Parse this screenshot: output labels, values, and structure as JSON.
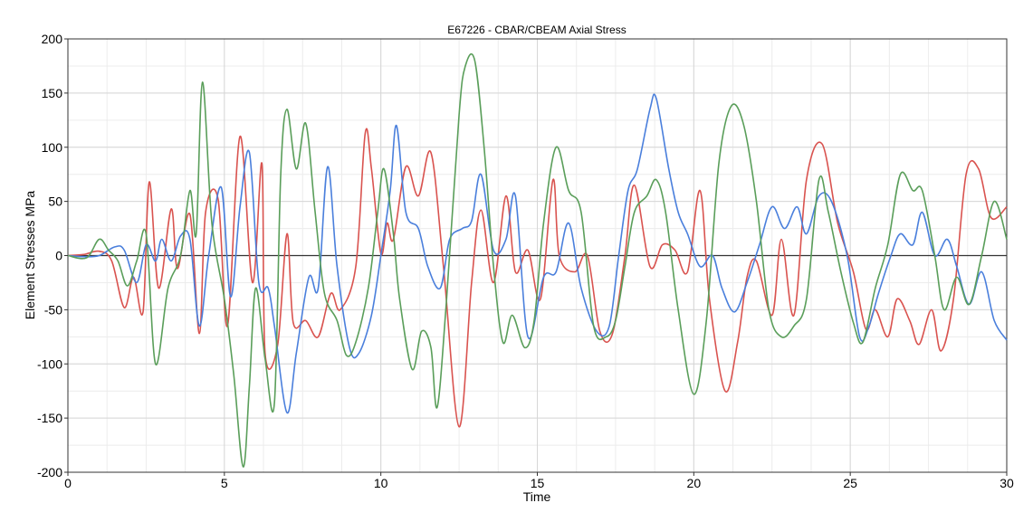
{
  "chart_data": {
    "type": "line",
    "title": "E67226 - CBAR/CBEAM Axial Stress",
    "xlabel": "Time",
    "ylabel": "Element Stresses MPa",
    "xlim": [
      0,
      30
    ],
    "ylim": [
      -200,
      200
    ],
    "x_ticks": [
      0,
      5,
      10,
      15,
      20,
      25,
      30
    ],
    "y_ticks": [
      -200,
      -150,
      -100,
      -50,
      0,
      50,
      100,
      150,
      200
    ],
    "grid": true,
    "legend": "none",
    "series": [
      {
        "color": "#d9534f",
        "points": [
          [
            0,
            0
          ],
          [
            0.5,
            1
          ],
          [
            1,
            4
          ],
          [
            1.4,
            -5
          ],
          [
            1.8,
            -48
          ],
          [
            2.1,
            -20
          ],
          [
            2.4,
            -52
          ],
          [
            2.6,
            68
          ],
          [
            2.9,
            -30
          ],
          [
            3.3,
            43
          ],
          [
            3.5,
            -12
          ],
          [
            3.9,
            38
          ],
          [
            4.2,
            -72
          ],
          [
            4.4,
            40
          ],
          [
            4.8,
            52
          ],
          [
            5.1,
            -65
          ],
          [
            5.5,
            110
          ],
          [
            5.9,
            -25
          ],
          [
            6.2,
            85
          ],
          [
            6.3,
            -90
          ],
          [
            6.7,
            -83
          ],
          [
            7.0,
            20
          ],
          [
            7.2,
            -62
          ],
          [
            7.6,
            -60
          ],
          [
            8.0,
            -75
          ],
          [
            8.4,
            -35
          ],
          [
            8.7,
            -50
          ],
          [
            9.2,
            -10
          ],
          [
            9.5,
            113
          ],
          [
            9.7,
            80
          ],
          [
            10.0,
            2
          ],
          [
            10.2,
            30
          ],
          [
            10.4,
            15
          ],
          [
            10.8,
            82
          ],
          [
            11.2,
            55
          ],
          [
            11.6,
            95
          ],
          [
            12.0,
            -10
          ],
          [
            12.5,
            -158
          ],
          [
            12.9,
            -25
          ],
          [
            13.2,
            42
          ],
          [
            13.6,
            -25
          ],
          [
            14.0,
            55
          ],
          [
            14.3,
            -15
          ],
          [
            14.7,
            5
          ],
          [
            15.1,
            -40
          ],
          [
            15.5,
            70
          ],
          [
            15.7,
            0
          ],
          [
            16.2,
            -15
          ],
          [
            16.6,
            0
          ],
          [
            17.0,
            -70
          ],
          [
            17.4,
            -72
          ],
          [
            17.8,
            0
          ],
          [
            18.1,
            65
          ],
          [
            18.6,
            -10
          ],
          [
            19.0,
            10
          ],
          [
            19.4,
            5
          ],
          [
            19.8,
            -15
          ],
          [
            20.2,
            60
          ],
          [
            20.5,
            -40
          ],
          [
            21.0,
            -125
          ],
          [
            21.4,
            -80
          ],
          [
            21.7,
            -20
          ],
          [
            22.0,
            -5
          ],
          [
            22.5,
            -55
          ],
          [
            22.8,
            15
          ],
          [
            23.2,
            -55
          ],
          [
            23.6,
            70
          ],
          [
            24.1,
            103
          ],
          [
            24.6,
            30
          ],
          [
            25.1,
            -15
          ],
          [
            25.5,
            -68
          ],
          [
            25.8,
            -50
          ],
          [
            26.2,
            -75
          ],
          [
            26.5,
            -40
          ],
          [
            26.9,
            -60
          ],
          [
            27.2,
            -82
          ],
          [
            27.6,
            -50
          ],
          [
            27.9,
            -88
          ],
          [
            28.3,
            -40
          ],
          [
            28.7,
            75
          ],
          [
            29.1,
            80
          ],
          [
            29.5,
            35
          ],
          [
            30,
            45
          ]
        ]
      },
      {
        "color": "#4a7fdc",
        "points": [
          [
            0,
            0
          ],
          [
            0.5,
            -1
          ],
          [
            1,
            0
          ],
          [
            1.5,
            8
          ],
          [
            1.8,
            5
          ],
          [
            2.2,
            -25
          ],
          [
            2.5,
            10
          ],
          [
            2.8,
            -5
          ],
          [
            3.0,
            15
          ],
          [
            3.3,
            -5
          ],
          [
            3.6,
            18
          ],
          [
            3.9,
            15
          ],
          [
            4.2,
            -65
          ],
          [
            4.5,
            0
          ],
          [
            4.9,
            63
          ],
          [
            5.2,
            -38
          ],
          [
            5.5,
            45
          ],
          [
            5.8,
            95
          ],
          [
            6.1,
            -25
          ],
          [
            6.4,
            -30
          ],
          [
            6.6,
            -65
          ],
          [
            7.0,
            -145
          ],
          [
            7.3,
            -90
          ],
          [
            7.7,
            -20
          ],
          [
            8.0,
            -30
          ],
          [
            8.3,
            82
          ],
          [
            8.6,
            -10
          ],
          [
            9.0,
            -85
          ],
          [
            9.3,
            -90
          ],
          [
            9.7,
            -55
          ],
          [
            10.0,
            0
          ],
          [
            10.3,
            60
          ],
          [
            10.5,
            120
          ],
          [
            10.8,
            40
          ],
          [
            11.2,
            25
          ],
          [
            11.5,
            -10
          ],
          [
            11.9,
            -30
          ],
          [
            12.2,
            15
          ],
          [
            12.6,
            25
          ],
          [
            12.9,
            32
          ],
          [
            13.2,
            75
          ],
          [
            13.6,
            5
          ],
          [
            14.0,
            15
          ],
          [
            14.3,
            55
          ],
          [
            14.7,
            -75
          ],
          [
            15.2,
            -20
          ],
          [
            15.6,
            -15
          ],
          [
            16.0,
            30
          ],
          [
            16.4,
            -30
          ],
          [
            16.9,
            -70
          ],
          [
            17.3,
            -65
          ],
          [
            17.6,
            0
          ],
          [
            17.9,
            60
          ],
          [
            18.2,
            80
          ],
          [
            18.6,
            135
          ],
          [
            18.8,
            145
          ],
          [
            19.2,
            80
          ],
          [
            19.5,
            40
          ],
          [
            19.8,
            20
          ],
          [
            20.2,
            -10
          ],
          [
            20.6,
            0
          ],
          [
            20.9,
            -30
          ],
          [
            21.3,
            -52
          ],
          [
            21.7,
            -25
          ],
          [
            22.1,
            10
          ],
          [
            22.5,
            45
          ],
          [
            22.9,
            25
          ],
          [
            23.3,
            45
          ],
          [
            23.6,
            20
          ],
          [
            24.0,
            55
          ],
          [
            24.4,
            50
          ],
          [
            24.9,
            0
          ],
          [
            25.3,
            -75
          ],
          [
            25.6,
            -65
          ],
          [
            25.9,
            -35
          ],
          [
            26.3,
            0
          ],
          [
            26.6,
            20
          ],
          [
            27.0,
            10
          ],
          [
            27.3,
            40
          ],
          [
            27.7,
            0
          ],
          [
            28.1,
            15
          ],
          [
            28.4,
            -10
          ],
          [
            28.8,
            -45
          ],
          [
            29.2,
            -15
          ],
          [
            29.6,
            -60
          ],
          [
            30,
            -78
          ]
        ]
      },
      {
        "color": "#5a9e5a",
        "points": [
          [
            0,
            0
          ],
          [
            0.6,
            -2
          ],
          [
            1.0,
            15
          ],
          [
            1.3,
            5
          ],
          [
            1.6,
            -5
          ],
          [
            1.9,
            -28
          ],
          [
            2.2,
            -5
          ],
          [
            2.5,
            20
          ],
          [
            2.8,
            -100
          ],
          [
            3.2,
            -30
          ],
          [
            3.6,
            0
          ],
          [
            3.9,
            60
          ],
          [
            4.1,
            20
          ],
          [
            4.3,
            160
          ],
          [
            4.6,
            30
          ],
          [
            5.0,
            -40
          ],
          [
            5.3,
            -110
          ],
          [
            5.6,
            -195
          ],
          [
            5.8,
            -120
          ],
          [
            6.0,
            -30
          ],
          [
            6.3,
            -95
          ],
          [
            6.6,
            -136
          ],
          [
            6.8,
            75
          ],
          [
            7.0,
            135
          ],
          [
            7.3,
            80
          ],
          [
            7.6,
            122
          ],
          [
            7.9,
            40
          ],
          [
            8.2,
            -35
          ],
          [
            8.6,
            -60
          ],
          [
            8.9,
            -92
          ],
          [
            9.2,
            -80
          ],
          [
            9.6,
            -30
          ],
          [
            9.9,
            40
          ],
          [
            10.1,
            80
          ],
          [
            10.4,
            20
          ],
          [
            10.6,
            -40
          ],
          [
            11.0,
            -105
          ],
          [
            11.3,
            -70
          ],
          [
            11.6,
            -85
          ],
          [
            11.8,
            -140
          ],
          [
            12.1,
            -40
          ],
          [
            12.5,
            130
          ],
          [
            12.7,
            175
          ],
          [
            13.0,
            180
          ],
          [
            13.3,
            100
          ],
          [
            13.6,
            -10
          ],
          [
            13.9,
            -80
          ],
          [
            14.2,
            -55
          ],
          [
            14.6,
            -85
          ],
          [
            14.9,
            -60
          ],
          [
            15.2,
            30
          ],
          [
            15.6,
            100
          ],
          [
            16.0,
            60
          ],
          [
            16.4,
            40
          ],
          [
            16.8,
            -65
          ],
          [
            17.2,
            -75
          ],
          [
            17.5,
            -60
          ],
          [
            17.8,
            -10
          ],
          [
            18.1,
            40
          ],
          [
            18.5,
            55
          ],
          [
            18.8,
            70
          ],
          [
            19.1,
            40
          ],
          [
            19.5,
            -50
          ],
          [
            20.0,
            -128
          ],
          [
            20.4,
            -60
          ],
          [
            20.8,
            85
          ],
          [
            21.2,
            138
          ],
          [
            21.6,
            120
          ],
          [
            22.0,
            50
          ],
          [
            22.4,
            -50
          ],
          [
            22.8,
            -75
          ],
          [
            23.2,
            -65
          ],
          [
            23.6,
            -40
          ],
          [
            24.0,
            70
          ],
          [
            24.3,
            40
          ],
          [
            24.7,
            -15
          ],
          [
            25.1,
            -62
          ],
          [
            25.4,
            -80
          ],
          [
            25.8,
            -30
          ],
          [
            26.2,
            10
          ],
          [
            26.6,
            75
          ],
          [
            27.0,
            60
          ],
          [
            27.3,
            60
          ],
          [
            27.7,
            0
          ],
          [
            28.0,
            -50
          ],
          [
            28.4,
            -20
          ],
          [
            28.8,
            -45
          ],
          [
            29.2,
            0
          ],
          [
            29.6,
            50
          ],
          [
            30,
            15
          ]
        ]
      }
    ]
  }
}
